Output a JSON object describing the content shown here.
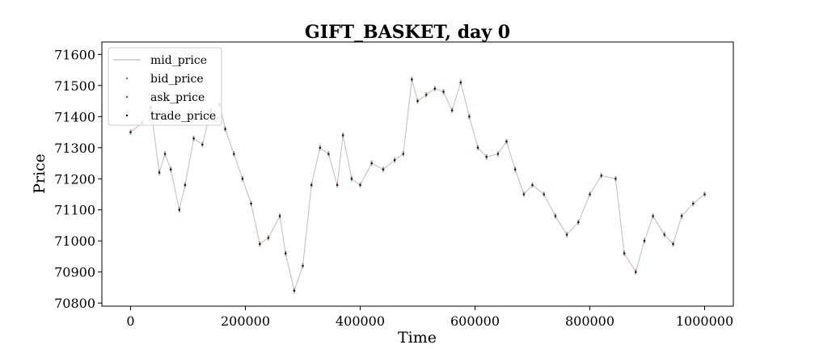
{
  "chart_data": {
    "type": "line",
    "title": "GIFT_BASKET, day 0",
    "xlabel": "Time",
    "ylabel": "Price",
    "xlim": [
      -50000,
      1050000
    ],
    "ylim": [
      70790,
      71640
    ],
    "xticks": [
      0,
      200000,
      400000,
      600000,
      800000,
      1000000
    ],
    "xtick_labels": [
      "0",
      "200000",
      "400000",
      "600000",
      "800000",
      "1000000"
    ],
    "yticks": [
      70800,
      70900,
      71000,
      71100,
      71200,
      71300,
      71400,
      71500,
      71600
    ],
    "ytick_labels": [
      "70800",
      "70900",
      "71000",
      "71100",
      "71200",
      "71300",
      "71400",
      "71500",
      "71600"
    ],
    "grid": false,
    "legend_position": "top-left",
    "x": [
      0,
      20000,
      35000,
      50000,
      60000,
      70000,
      85000,
      95000,
      110000,
      125000,
      140000,
      155000,
      165000,
      180000,
      195000,
      210000,
      225000,
      240000,
      260000,
      270000,
      285000,
      300000,
      315000,
      330000,
      345000,
      360000,
      370000,
      385000,
      400000,
      420000,
      440000,
      460000,
      475000,
      490000,
      500000,
      515000,
      530000,
      545000,
      560000,
      575000,
      590000,
      605000,
      620000,
      640000,
      655000,
      670000,
      685000,
      700000,
      720000,
      740000,
      760000,
      780000,
      800000,
      820000,
      845000,
      860000,
      880000,
      895000,
      910000,
      930000,
      945000,
      960000,
      980000,
      1000000
    ],
    "series": [
      {
        "name": "mid_price",
        "color": "#c7c7c7",
        "style": "line",
        "values": [
          71350,
          71380,
          71430,
          71220,
          71280,
          71230,
          71100,
          71180,
          71330,
          71310,
          71420,
          71440,
          71360,
          71280,
          71200,
          71120,
          70990,
          71010,
          71080,
          70960,
          70840,
          70920,
          71180,
          71300,
          71280,
          71180,
          71340,
          71200,
          71180,
          71250,
          71230,
          71260,
          71280,
          71520,
          71450,
          71470,
          71490,
          71480,
          71420,
          71510,
          71400,
          71300,
          71270,
          71280,
          71320,
          71230,
          71150,
          71180,
          71150,
          71080,
          71020,
          71060,
          71150,
          71210,
          71200,
          70960,
          70900,
          71000,
          71080,
          71020,
          70990,
          71080,
          71120,
          71150
        ]
      },
      {
        "name": "bid_price",
        "color": "#2ca02c",
        "style": "dots",
        "values": [
          71344,
          71374,
          71424,
          71214,
          71274,
          71224,
          71094,
          71174,
          71324,
          71304,
          71414,
          71434,
          71354,
          71274,
          71194,
          71114,
          70984,
          71004,
          71074,
          70954,
          70834,
          70914,
          71174,
          71294,
          71274,
          71174,
          71334,
          71194,
          71174,
          71244,
          71224,
          71254,
          71274,
          71514,
          71444,
          71464,
          71484,
          71474,
          71414,
          71504,
          71394,
          71294,
          71264,
          71274,
          71314,
          71224,
          71144,
          71174,
          71144,
          71074,
          71014,
          71054,
          71144,
          71204,
          71194,
          70954,
          70894,
          70994,
          71074,
          71014,
          70984,
          71074,
          71114,
          71144
        ]
      },
      {
        "name": "ask_price",
        "color": "#d62728",
        "style": "dots",
        "values": [
          71356,
          71386,
          71436,
          71226,
          71286,
          71236,
          71106,
          71186,
          71336,
          71316,
          71426,
          71446,
          71366,
          71286,
          71206,
          71126,
          70996,
          71016,
          71086,
          70966,
          70846,
          70926,
          71186,
          71306,
          71286,
          71186,
          71346,
          71206,
          71186,
          71256,
          71236,
          71266,
          71286,
          71526,
          71456,
          71476,
          71496,
          71486,
          71426,
          71516,
          71406,
          71306,
          71276,
          71286,
          71326,
          71236,
          71156,
          71186,
          71156,
          71086,
          71026,
          71066,
          71156,
          71216,
          71206,
          70966,
          70906,
          71006,
          71086,
          71026,
          70996,
          71086,
          71126,
          71156
        ]
      },
      {
        "name": "trade_price",
        "color": "#000000",
        "style": "dots",
        "values": [
          71350,
          71380,
          71430,
          71220,
          71280,
          71230,
          71100,
          71180,
          71330,
          71310,
          71420,
          71440,
          71360,
          71280,
          71200,
          71120,
          70990,
          71010,
          71080,
          70960,
          70840,
          70920,
          71180,
          71300,
          71280,
          71180,
          71340,
          71200,
          71180,
          71250,
          71230,
          71260,
          71280,
          71520,
          71450,
          71470,
          71490,
          71480,
          71420,
          71510,
          71400,
          71300,
          71270,
          71280,
          71320,
          71230,
          71150,
          71180,
          71150,
          71080,
          71020,
          71060,
          71150,
          71210,
          71200,
          70960,
          70900,
          71000,
          71080,
          71020,
          70990,
          71080,
          71120,
          71150
        ]
      }
    ]
  }
}
